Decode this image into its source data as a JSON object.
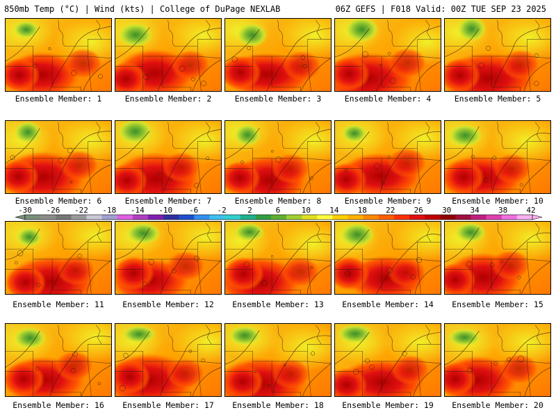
{
  "header": {
    "left": "850mb Temp (°C) | Wind (kts) | College of DuPage NEXLAB",
    "right": "06Z GEFS | F018 Valid: 00Z TUE SEP 23 2025"
  },
  "panel_label_prefix": "Ensemble Member: ",
  "members": [
    {
      "label": "Ensemble Member: 1"
    },
    {
      "label": "Ensemble Member: 2"
    },
    {
      "label": "Ensemble Member: 3"
    },
    {
      "label": "Ensemble Member: 4"
    },
    {
      "label": "Ensemble Member: 5"
    },
    {
      "label": "Ensemble Member: 6"
    },
    {
      "label": "Ensemble Member: 7"
    },
    {
      "label": "Ensemble Member: 8"
    },
    {
      "label": "Ensemble Member: 9"
    },
    {
      "label": "Ensemble Member: 10"
    },
    {
      "label": "Ensemble Member: 11"
    },
    {
      "label": "Ensemble Member: 12"
    },
    {
      "label": "Ensemble Member: 13"
    },
    {
      "label": "Ensemble Member: 14"
    },
    {
      "label": "Ensemble Member: 15"
    },
    {
      "label": "Ensemble Member: 16"
    },
    {
      "label": "Ensemble Member: 17"
    },
    {
      "label": "Ensemble Member: 18"
    },
    {
      "label": "Ensemble Member: 19"
    },
    {
      "label": "Ensemble Member: 20"
    }
  ],
  "colorbar": {
    "tick_labels": [
      "-30",
      "-26",
      "-22",
      "-18",
      "-14",
      "-10",
      "-6",
      "-2",
      "2",
      "6",
      "10",
      "14",
      "18",
      "22",
      "26",
      "30",
      "34",
      "38",
      "42"
    ],
    "colors": [
      "#7a8f7a",
      "#8c8c8c",
      "#777777",
      "#9a9a9a",
      "#c8c8d8",
      "#a0a0d0",
      "#e060e0",
      "#b040c0",
      "#8020b0",
      "#3030a0",
      "#2050d0",
      "#3090f0",
      "#40c0f0",
      "#30d0d0",
      "#20b090",
      "#30a040",
      "#60b030",
      "#a0d030",
      "#e0e020",
      "#ffff40",
      "#ffd000",
      "#ffb000",
      "#ff8800",
      "#ff6000",
      "#ff3000",
      "#e01010",
      "#c00000",
      "#900000",
      "#a01040",
      "#c02080",
      "#e040b0",
      "#f070e0",
      "#f8b0f0"
    ]
  }
}
